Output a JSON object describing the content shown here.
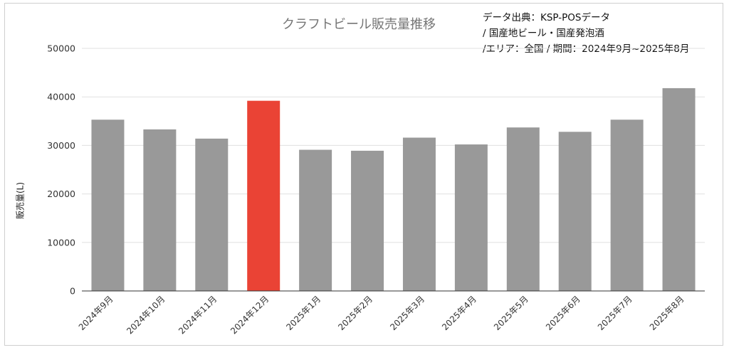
{
  "chart_data": {
    "type": "bar",
    "title": "クラフトビール販売量推移",
    "source_lines": [
      "データ出典：KSP-POSデータ",
      " / 国産地ビール・国産発泡酒",
      "/エリア：全国 / 期間：2024年9月~2025年8月"
    ],
    "xlabel": "",
    "ylabel": "販売量(L)",
    "ylim": [
      0,
      50000
    ],
    "yticks": [
      "0",
      "10000",
      "20000",
      "30000",
      "40000",
      "50000"
    ],
    "grid": true,
    "categories": [
      "2024年9月",
      "2024年10月",
      "2024年11月",
      "2024年12月",
      "2025年1月",
      "2025年2月",
      "2025年3月",
      "2025年4月",
      "2025年5月",
      "2025年6月",
      "2025年7月",
      "2025年8月"
    ],
    "values": [
      35300,
      33300,
      31400,
      39200,
      29100,
      28900,
      31600,
      30200,
      33700,
      32800,
      35300,
      41800
    ],
    "highlight_index": 3,
    "colors": {
      "default": "#999999",
      "highlight": "#ea4335",
      "grid": "#e0e0e0",
      "axis": "#333333"
    }
  }
}
